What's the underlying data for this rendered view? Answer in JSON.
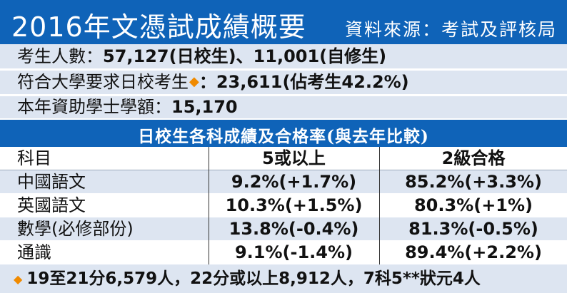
{
  "header": {
    "title": "2016年文憑試成績概要",
    "source": "資料來源：考試及評核局"
  },
  "info": {
    "line1_label": "考生人數：",
    "line1_value": "57,127(日校生)、11,001(自修生)",
    "line2_label": "符合大學要求日校考生",
    "line2_marker": "◆",
    "line2_value": "：23,611(佔考生42.2%)",
    "line3_label": "本年資助學士學額：",
    "line3_value": "15,170"
  },
  "table": {
    "title": "日校生各科成績及合格率(與去年比較)",
    "headers": [
      "科目",
      "5或以上",
      "2級合格"
    ],
    "rows": [
      [
        "中國語文",
        "9.2%(+1.7%)",
        "85.2%(+3.3%)"
      ],
      [
        "英國語文",
        "10.3%(+1.5%)",
        "80.3%(+1%)"
      ],
      [
        "數學(必修部份)",
        "13.8%(-0.4%)",
        "81.3%(-0.5%)"
      ],
      [
        "通識",
        "9.1%(-1.4%)",
        "89.4%(+2.2%)"
      ]
    ]
  },
  "footer": {
    "marker": "◆",
    "text": "19至21分6,579人，22分或以上8,912人，7科5**狀元4人"
  },
  "colors": {
    "header_blue": "#0f63b8",
    "light_band": "#dde5f1",
    "marker_orange": "#f08a00"
  }
}
